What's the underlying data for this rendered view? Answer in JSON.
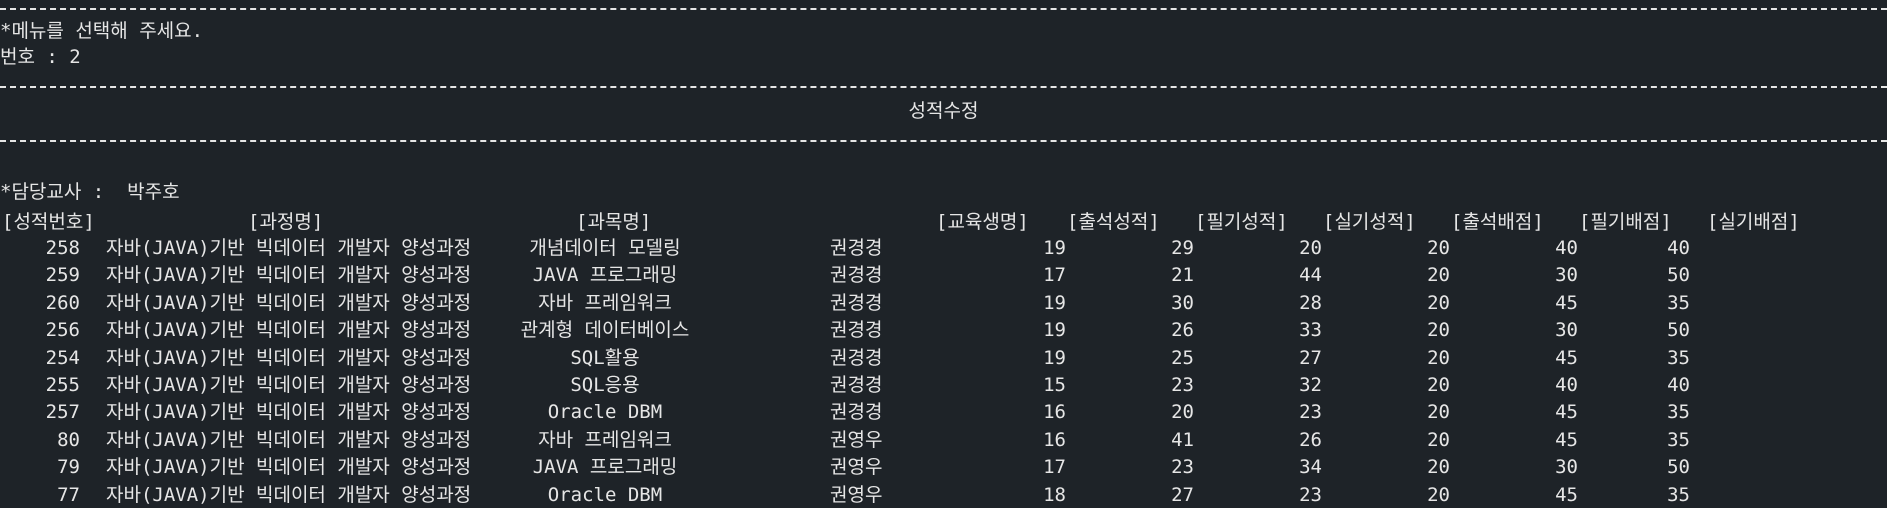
{
  "prompt": {
    "menu": "*메뉴를 선택해 주세요.",
    "number_label": "번호 : 2"
  },
  "screen_title": "성적수정",
  "teacher_line": "*담당교사 :  박주호",
  "headers": [
    "[성적번호]",
    "[과정명]",
    "[과목명]",
    "[교육생명]",
    "[출석성적]",
    "[필기성적]",
    "[실기성적]",
    "[출석배점]",
    "[필기배점]",
    "[실기배점]"
  ],
  "rows": [
    {
      "id": "258",
      "course": "자바(JAVA)기반 빅데이터 개발자 양성과정",
      "subject": "개념데이터 모델링",
      "student": "권경경",
      "att": "19",
      "written": "29",
      "practical": "20",
      "att_w": "20",
      "written_w": "40",
      "practical_w": "40"
    },
    {
      "id": "259",
      "course": "자바(JAVA)기반 빅데이터 개발자 양성과정",
      "subject": "JAVA 프로그래밍",
      "student": "권경경",
      "att": "17",
      "written": "21",
      "practical": "44",
      "att_w": "20",
      "written_w": "30",
      "practical_w": "50"
    },
    {
      "id": "260",
      "course": "자바(JAVA)기반 빅데이터 개발자 양성과정",
      "subject": "자바 프레임워크",
      "student": "권경경",
      "att": "19",
      "written": "30",
      "practical": "28",
      "att_w": "20",
      "written_w": "45",
      "practical_w": "35"
    },
    {
      "id": "256",
      "course": "자바(JAVA)기반 빅데이터 개발자 양성과정",
      "subject": "관계형 데이터베이스",
      "student": "권경경",
      "att": "19",
      "written": "26",
      "practical": "33",
      "att_w": "20",
      "written_w": "30",
      "practical_w": "50"
    },
    {
      "id": "254",
      "course": "자바(JAVA)기반 빅데이터 개발자 양성과정",
      "subject": "SQL활용",
      "student": "권경경",
      "att": "19",
      "written": "25",
      "practical": "27",
      "att_w": "20",
      "written_w": "45",
      "practical_w": "35"
    },
    {
      "id": "255",
      "course": "자바(JAVA)기반 빅데이터 개발자 양성과정",
      "subject": "SQL응용",
      "student": "권경경",
      "att": "15",
      "written": "23",
      "practical": "32",
      "att_w": "20",
      "written_w": "40",
      "practical_w": "40"
    },
    {
      "id": "257",
      "course": "자바(JAVA)기반 빅데이터 개발자 양성과정",
      "subject": "Oracle DBM",
      "student": "권경경",
      "att": "16",
      "written": "20",
      "practical": "23",
      "att_w": "20",
      "written_w": "45",
      "practical_w": "35"
    },
    {
      "id": "80",
      "course": "자바(JAVA)기반 빅데이터 개발자 양성과정",
      "subject": "자바 프레임워크",
      "student": "권영우",
      "att": "16",
      "written": "41",
      "practical": "26",
      "att_w": "20",
      "written_w": "45",
      "practical_w": "35"
    },
    {
      "id": "79",
      "course": "자바(JAVA)기반 빅데이터 개발자 양성과정",
      "subject": "JAVA 프로그래밍",
      "student": "권영우",
      "att": "17",
      "written": "23",
      "practical": "34",
      "att_w": "20",
      "written_w": "30",
      "practical_w": "50"
    },
    {
      "id": "77",
      "course": "자바(JAVA)기반 빅데이터 개발자 양성과정",
      "subject": "Oracle DBM",
      "student": "권영우",
      "att": "18",
      "written": "27",
      "practical": "23",
      "att_w": "20",
      "written_w": "45",
      "practical_w": "35"
    }
  ]
}
